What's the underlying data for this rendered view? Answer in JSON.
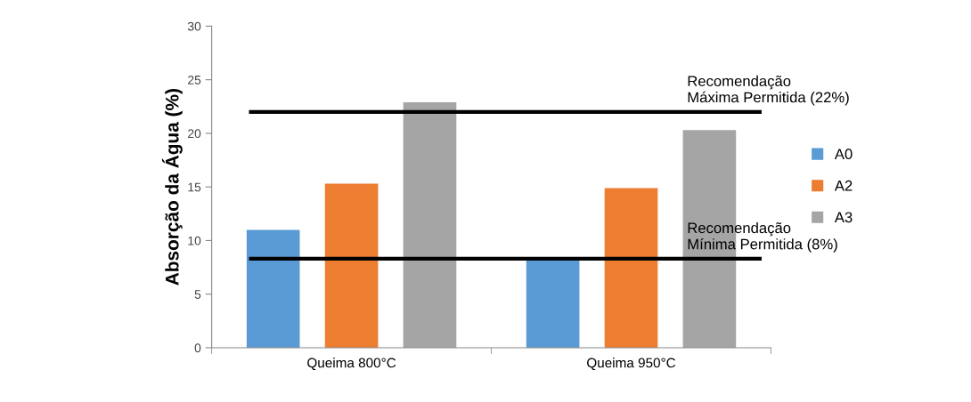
{
  "chart_data": {
    "type": "bar",
    "ylabel": "Absorção da Água (%)",
    "categories": [
      "Queima 800°C",
      "Queima 950°C"
    ],
    "series": [
      {
        "name": "A0",
        "color": "#5b9bd5",
        "values": [
          11.0,
          8.3
        ]
      },
      {
        "name": "A2",
        "color": "#ed7d31",
        "values": [
          15.3,
          14.9
        ]
      },
      {
        "name": "A3",
        "color": "#a5a5a5",
        "values": [
          22.9,
          20.3
        ]
      }
    ],
    "ylim": [
      0,
      30
    ],
    "yticks": [
      0,
      5,
      10,
      15,
      20,
      25,
      30
    ],
    "grid": false,
    "legend": "right",
    "ref_lines": [
      {
        "axis": "y",
        "value": 22.0,
        "label": "Recomendação\nMáxima Permitida (22%)",
        "color": "#000000"
      },
      {
        "axis": "y",
        "value": 8.3,
        "label": "Recomendação\nMínima Permitida (8%)",
        "color": "#000000"
      }
    ]
  }
}
